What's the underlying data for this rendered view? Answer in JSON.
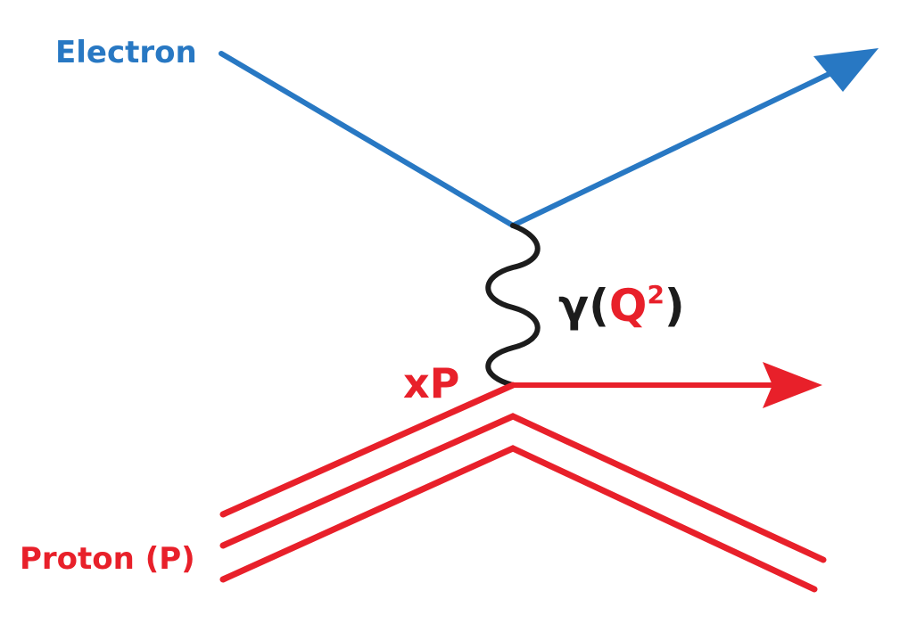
{
  "diagram": {
    "title": "",
    "labels": {
      "electron": "Electron",
      "proton": "Proton (P)",
      "parton": "xP",
      "photon_symbol": "γ",
      "open_paren": "(",
      "q": "Q",
      "q_exponent": "2",
      "close_paren": ")"
    },
    "colors": {
      "electron": "#2878c3",
      "proton": "#e8202a",
      "photon": "#1c1c1c",
      "background": "#ffffff"
    }
  }
}
